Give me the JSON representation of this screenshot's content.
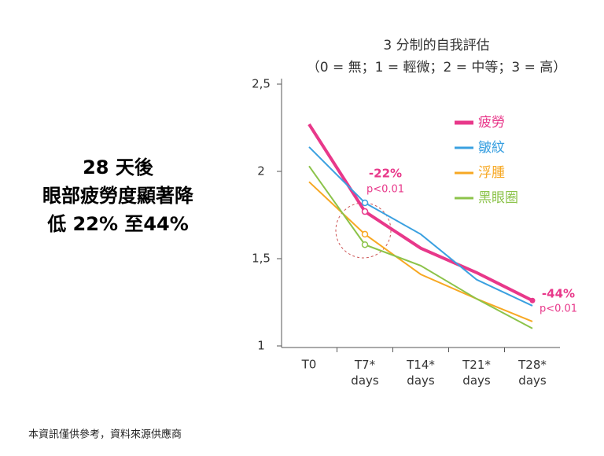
{
  "headline": [
    "28 天後",
    "眼部疲勞度顯著降",
    "低 22% 至44%"
  ],
  "footer": "本資訊僅供參考，資料來源供應商",
  "chart_data": {
    "type": "line",
    "title": "3 分制的自我評估",
    "subtitle": "（0 = 無；1 = 輕微；2 = 中等；3 = 高）",
    "categories": [
      "T0",
      "T7* days",
      "T14* days",
      "T21* days",
      "T28* days"
    ],
    "series": [
      {
        "name": "疲勞",
        "color": "#e8388a",
        "values": [
          2.27,
          1.77,
          1.56,
          1.42,
          1.26
        ]
      },
      {
        "name": "皺紋",
        "color": "#3aa0e0",
        "values": [
          2.14,
          1.82,
          1.64,
          1.38,
          1.23
        ]
      },
      {
        "name": "浮腫",
        "color": "#f7a823",
        "values": [
          1.94,
          1.64,
          1.41,
          1.27,
          1.14
        ]
      },
      {
        "name": "黑眼圈",
        "color": "#8cc34a",
        "values": [
          2.03,
          1.58,
          1.46,
          1.27,
          1.1
        ]
      }
    ],
    "ylim": [
      1,
      2.5
    ],
    "yticks": [
      1,
      {
        "value": 1.5,
        "label": "1,5"
      },
      2,
      {
        "value": 2.5,
        "label": "2,5"
      }
    ],
    "annotations": [
      {
        "text": "-22%",
        "subtext": "p<0.01"
      },
      {
        "text": "-44%",
        "subtext": "p<0.01"
      }
    ],
    "legend": "upper right"
  }
}
